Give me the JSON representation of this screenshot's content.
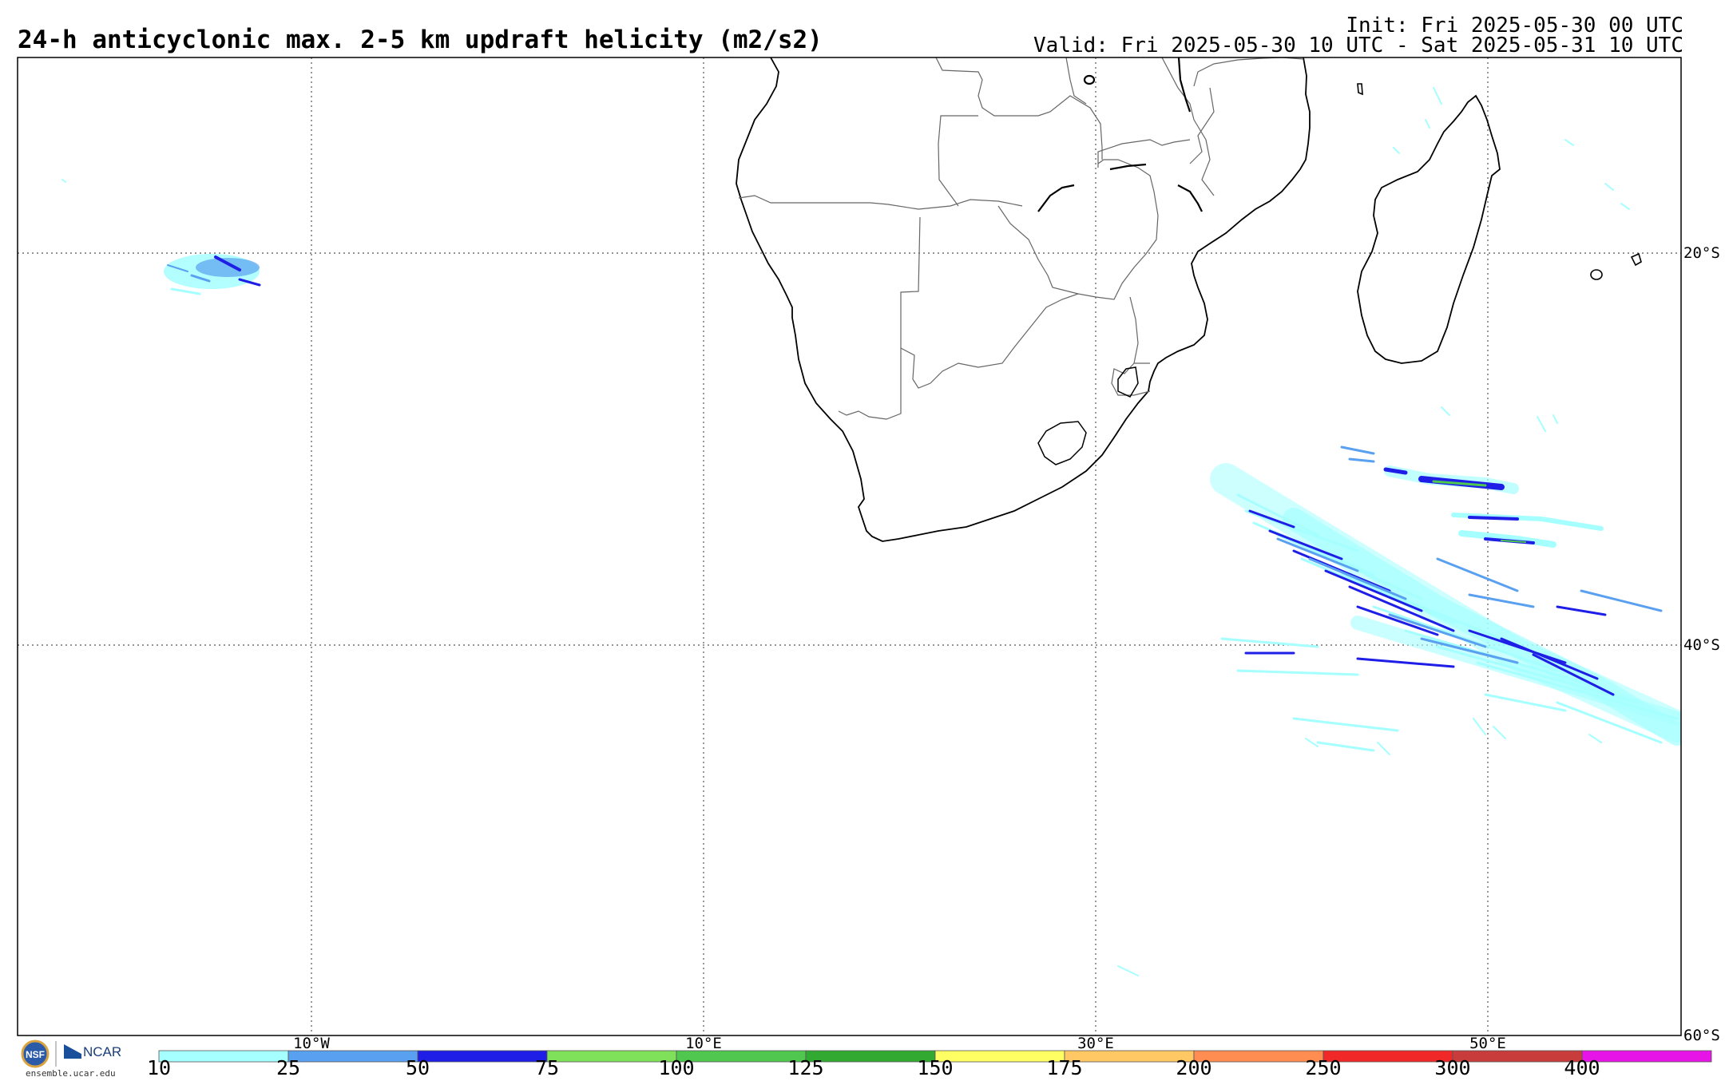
{
  "title": "24-h anticyclonic max. 2-5 km updraft helicity (m2/s2)",
  "init": "Init: Fri 2025-05-30 00 UTC",
  "valid": "Valid: Fri 2025-05-30 10 UTC - Sat 2025-05-31 10 UTC",
  "lon_labels": [
    "10°W",
    "10°E",
    "30°E",
    "50°E"
  ],
  "lat_labels": [
    "20°S",
    "40°S",
    "60°S"
  ],
  "colorbar": {
    "ticks": [
      "10",
      "25",
      "50",
      "75",
      "100",
      "125",
      "150",
      "175",
      "200",
      "250",
      "300",
      "400"
    ],
    "colors": [
      "#a6ffff",
      "#5aa0f0",
      "#1e1ee6",
      "#7fe05a",
      "#50c850",
      "#32aa32",
      "#ffff64",
      "#ffc864",
      "#ff8c50",
      "#f02828",
      "#c83c3c",
      "#e614e6"
    ]
  },
  "logo": {
    "org1": "NSF",
    "org2": "NCAR",
    "site": "ensemble.ucar.edu"
  },
  "chart_data": {
    "type": "heatmap",
    "variable": "24-h anticyclonic max. 2-5 km updraft helicity",
    "units": "m2/s2",
    "levels": [
      10,
      25,
      50,
      75,
      100,
      125,
      150,
      175,
      200,
      250,
      300,
      400
    ],
    "regions": [
      {
        "lon": -18,
        "lat": -21,
        "level": 50
      },
      {
        "lon": 42,
        "lat": -33,
        "level": 75
      },
      {
        "lon": 40,
        "lat": -39,
        "level": 50
      },
      {
        "lon": 44,
        "lat": -41,
        "level": 25
      }
    ]
  }
}
